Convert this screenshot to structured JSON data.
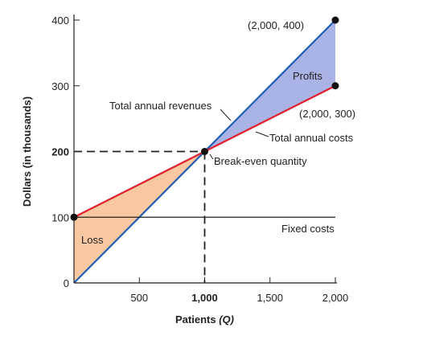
{
  "chart_data": {
    "type": "line",
    "title": "",
    "xlabel": "Patients",
    "xlabel_symbol": "(Q)",
    "ylabel": "Dollars (in thousands)",
    "xlim": [
      0,
      2000
    ],
    "ylim": [
      0,
      400
    ],
    "x_ticks": [
      {
        "value": 500,
        "label": "500",
        "bold": false
      },
      {
        "value": 1000,
        "label": "1,000",
        "bold": true
      },
      {
        "value": 1500,
        "label": "1,500",
        "bold": false
      },
      {
        "value": 2000,
        "label": "2,000",
        "bold": false
      }
    ],
    "y_ticks": [
      {
        "value": 0,
        "label": "0",
        "bold": false
      },
      {
        "value": 100,
        "label": "100",
        "bold": false
      },
      {
        "value": 200,
        "label": "200",
        "bold": true
      },
      {
        "value": 300,
        "label": "300",
        "bold": false
      },
      {
        "value": 400,
        "label": "400",
        "bold": false
      }
    ],
    "series": [
      {
        "name": "Total annual revenues",
        "x": [
          0,
          2000
        ],
        "y": [
          0,
          400
        ],
        "color": "#1f5fb4"
      },
      {
        "name": "Total annual costs",
        "x": [
          0,
          2000
        ],
        "y": [
          100,
          300
        ],
        "color": "#e0202c"
      },
      {
        "name": "Fixed costs",
        "x": [
          0,
          2000
        ],
        "y": [
          100,
          100
        ],
        "color": "#222222"
      }
    ],
    "regions": [
      {
        "name": "Loss",
        "color": "#f9c8a0",
        "polygon": [
          [
            0,
            0
          ],
          [
            0,
            100
          ],
          [
            1000,
            200
          ]
        ]
      },
      {
        "name": "Profits",
        "color": "#a9b3e6",
        "polygon": [
          [
            1000,
            200
          ],
          [
            2000,
            400
          ],
          [
            2000,
            300
          ]
        ]
      }
    ],
    "points": [
      {
        "x": 0,
        "y": 100
      },
      {
        "x": 1000,
        "y": 200
      },
      {
        "x": 2000,
        "y": 400
      },
      {
        "x": 2000,
        "y": 300
      }
    ],
    "annotations": [
      {
        "text": "(2,000, 400)"
      },
      {
        "text": "(2,000, 300)"
      },
      {
        "text": "Profits"
      },
      {
        "text": "Total annual revenues"
      },
      {
        "text": "Total annual costs"
      },
      {
        "text": "Break-even quantity"
      },
      {
        "text": "Fixed costs"
      },
      {
        "text": "Loss"
      }
    ],
    "break_even": {
      "x": 1000,
      "y": 200
    }
  }
}
